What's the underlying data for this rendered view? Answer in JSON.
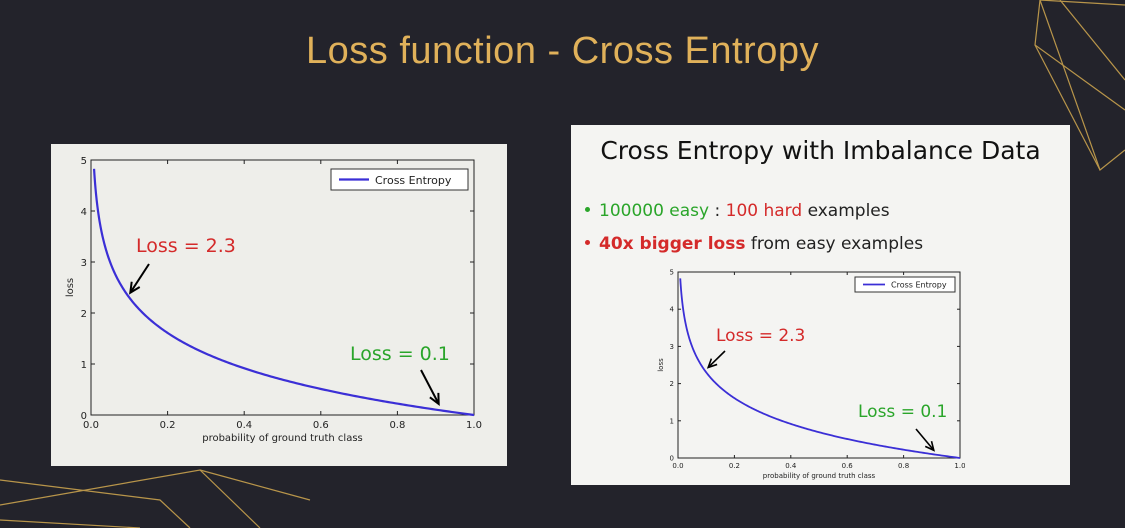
{
  "title": "Loss function - Cross Entropy",
  "right_panel": {
    "heading": "Cross Entropy with Imbalance Data",
    "bullets": [
      {
        "parts": [
          "100000 easy",
          " : ",
          "100 hard",
          " examples"
        ]
      },
      {
        "parts": [
          "40x bigger loss",
          " from easy examples"
        ]
      }
    ]
  },
  "colors": {
    "background": "#23232b",
    "title": "#e0b15a",
    "curve": "#3b2fd6",
    "red_label": "#d42a2a",
    "green_label": "#2aa52a"
  },
  "chart_data": [
    {
      "type": "line",
      "formula": "loss = -ln(p)",
      "x": [
        0.008,
        0.02,
        0.05,
        0.1,
        0.2,
        0.3,
        0.4,
        0.5,
        0.6,
        0.7,
        0.8,
        0.9,
        1.0
      ],
      "series": [
        {
          "name": "Cross Entropy",
          "values": [
            4.83,
            3.91,
            3.0,
            2.3,
            1.61,
            1.2,
            0.92,
            0.69,
            0.51,
            0.36,
            0.22,
            0.11,
            0.0
          ]
        }
      ],
      "xlabel": "probability of ground truth class",
      "ylabel": "loss",
      "xlim": [
        0.0,
        1.0
      ],
      "ylim": [
        0,
        5
      ],
      "xticks": [
        "0.0",
        "0.2",
        "0.4",
        "0.6",
        "0.8",
        "1.0"
      ],
      "yticks": [
        "0",
        "1",
        "2",
        "3",
        "4",
        "5"
      ],
      "legend": {
        "placement": "top-right",
        "label": "Cross Entropy"
      },
      "grid": false,
      "annotations": [
        {
          "text": "Loss = 2.3",
          "x": 0.1,
          "y": 2.3,
          "color": "red"
        },
        {
          "text": "Loss = 0.1",
          "x": 0.9,
          "y": 0.1,
          "color": "green"
        }
      ]
    },
    {
      "type": "line",
      "formula": "loss = -ln(p)",
      "x": [
        0.008,
        0.02,
        0.05,
        0.1,
        0.2,
        0.3,
        0.4,
        0.5,
        0.6,
        0.7,
        0.8,
        0.9,
        1.0
      ],
      "series": [
        {
          "name": "Cross Entropy",
          "values": [
            4.83,
            3.91,
            3.0,
            2.3,
            1.61,
            1.2,
            0.92,
            0.69,
            0.51,
            0.36,
            0.22,
            0.11,
            0.0
          ]
        }
      ],
      "xlabel": "probability of ground truth class",
      "ylabel": "loss",
      "xlim": [
        0.0,
        1.0
      ],
      "ylim": [
        0,
        5
      ],
      "xticks": [
        "0.0",
        "0.2",
        "0.4",
        "0.6",
        "0.8",
        "1.0"
      ],
      "yticks": [
        "0",
        "1",
        "2",
        "3",
        "4",
        "5"
      ],
      "legend": {
        "placement": "top-right",
        "label": "Cross Entropy"
      },
      "grid": false,
      "annotations": [
        {
          "text": "Loss = 2.3",
          "x": 0.1,
          "y": 2.3,
          "color": "red"
        },
        {
          "text": "Loss = 0.1",
          "x": 0.9,
          "y": 0.1,
          "color": "green"
        }
      ]
    }
  ]
}
